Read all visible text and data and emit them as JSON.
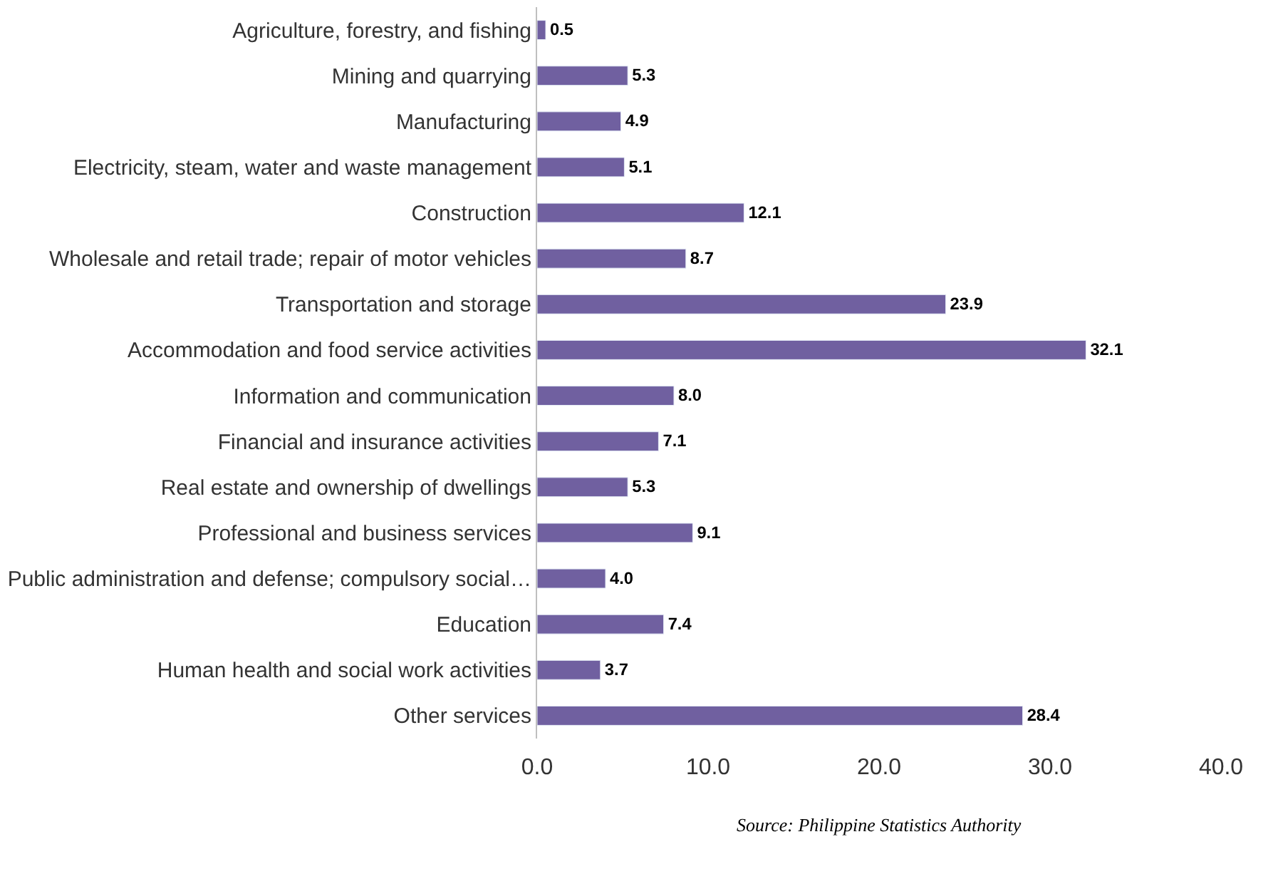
{
  "chart_data": {
    "type": "bar",
    "orientation": "horizontal",
    "categories": [
      "Agriculture, forestry, and fishing",
      "Mining and quarrying",
      "Manufacturing",
      "Electricity, steam, water and waste management",
      "Construction",
      "Wholesale and retail trade; repair of motor vehicles",
      "Transportation and storage",
      "Accommodation and food service activities",
      "Information and communication",
      "Financial and insurance activities",
      "Real estate and ownership of dwellings",
      "Professional and business services",
      "Public administration and defense; compulsory social…",
      "Education",
      "Human health and social work activities",
      "Other services"
    ],
    "values": [
      0.5,
      5.3,
      4.9,
      5.1,
      12.1,
      8.7,
      23.9,
      32.1,
      8.0,
      7.1,
      5.3,
      9.1,
      4.0,
      7.4,
      3.7,
      28.4
    ],
    "color": "#7060a0",
    "value_labels": [
      "0.5",
      "5.3",
      "4.9",
      "5.1",
      "12.1",
      "8.7",
      "23.9",
      "32.1",
      "8.0",
      "7.1",
      "5.3",
      "9.1",
      "4.0",
      "7.4",
      "3.7",
      "28.4"
    ],
    "xlim": [
      0,
      40
    ],
    "xticks": [
      {
        "value": 0,
        "label": "0.0"
      },
      {
        "value": 10,
        "label": "10.0"
      },
      {
        "value": 20,
        "label": "20.0"
      },
      {
        "value": 30,
        "label": "30.0"
      },
      {
        "value": 40,
        "label": "40.0"
      }
    ],
    "legend": false,
    "annotations": [
      "Source: Philippine Statistics Authority"
    ]
  }
}
